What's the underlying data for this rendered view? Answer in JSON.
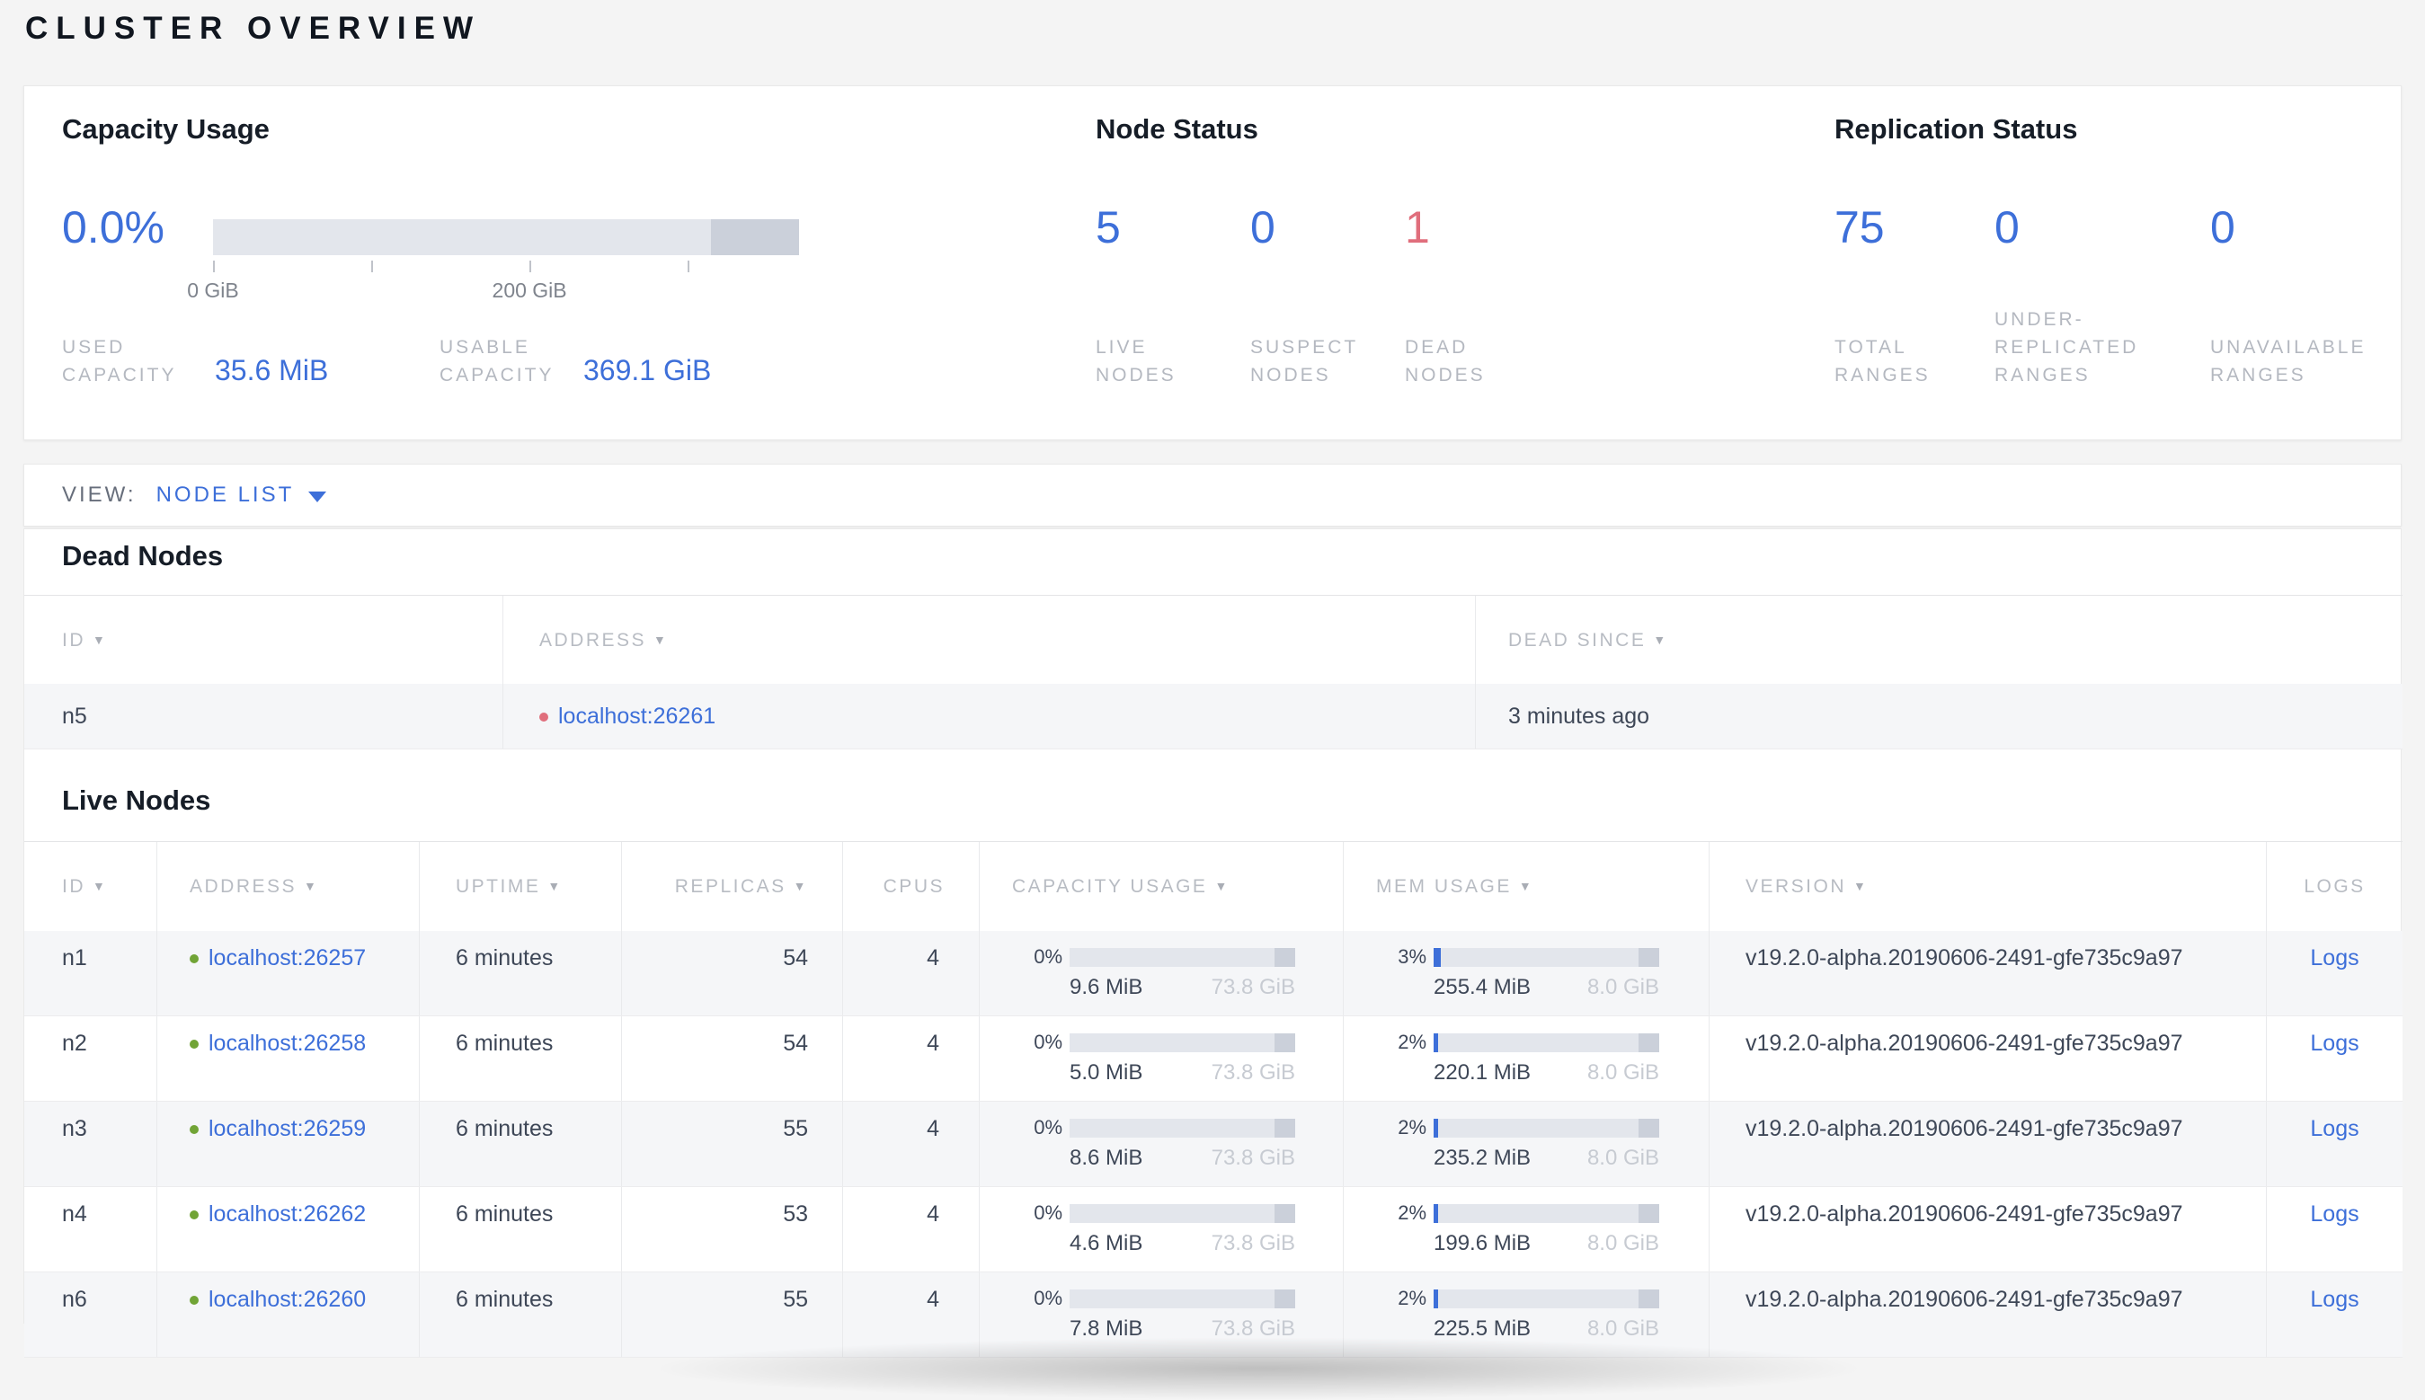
{
  "theme": {
    "accent_blue": "#3d6fd9",
    "danger_red": "#e06e7c",
    "live_green": "#71a436",
    "label_gray": "#b4b8c0",
    "bar_track": "#e3e6ec",
    "bar_reserved": "#cbd0da",
    "muted_value": "#c7cbd2",
    "page_bg": "#f4f4f4"
  },
  "title": "CLUSTER OVERVIEW",
  "summary": {
    "capacity": {
      "title": "Capacity Usage",
      "percent": "0.0%",
      "used_label": "USED\nCAPACITY",
      "used_value": "35.6 MiB",
      "usable_label": "USABLE\nCAPACITY",
      "usable_value": "369.1 GiB",
      "gauge": {
        "used_pct": 0,
        "reserved_start_pct": 85,
        "ticks": [
          {
            "pos_pct": 0,
            "label": "0 GiB"
          },
          {
            "pos_pct": 27,
            "label": ""
          },
          {
            "pos_pct": 54,
            "label": "200 GiB"
          },
          {
            "pos_pct": 81,
            "label": ""
          }
        ]
      }
    },
    "node_status": {
      "title": "Node Status",
      "stats": [
        {
          "value": "5",
          "label": "LIVE\nNODES",
          "tone": "blue"
        },
        {
          "value": "0",
          "label": "SUSPECT\nNODES",
          "tone": "blue"
        },
        {
          "value": "1",
          "label": "DEAD\nNODES",
          "tone": "red"
        }
      ]
    },
    "replication": {
      "title": "Replication Status",
      "stats": [
        {
          "value": "75",
          "label": "TOTAL\nRANGES",
          "tone": "blue"
        },
        {
          "value": "0",
          "label": "UNDER-\nREPLICATED\nRANGES",
          "tone": "blue"
        },
        {
          "value": "0",
          "label": "UNAVAILABLE\nRANGES",
          "tone": "blue"
        }
      ]
    }
  },
  "view_bar": {
    "label": "VIEW:",
    "selected": "NODE LIST"
  },
  "dead_nodes": {
    "title": "Dead Nodes",
    "columns": [
      {
        "label": "ID",
        "sortable": true
      },
      {
        "label": "ADDRESS",
        "sortable": true
      },
      {
        "label": "DEAD SINCE",
        "sortable": true
      }
    ],
    "rows": [
      {
        "id": "n5",
        "address": "localhost:26261",
        "dead_since": "3 minutes ago"
      }
    ]
  },
  "live_nodes": {
    "title": "Live Nodes",
    "columns": [
      {
        "label": "ID",
        "sortable": true
      },
      {
        "label": "ADDRESS",
        "sortable": true
      },
      {
        "label": "UPTIME",
        "sortable": true
      },
      {
        "label": "REPLICAS",
        "sortable": true
      },
      {
        "label": "CPUS",
        "sortable": false
      },
      {
        "label": "CAPACITY USAGE",
        "sortable": true
      },
      {
        "label": "MEM USAGE",
        "sortable": true
      },
      {
        "label": "VERSION",
        "sortable": true
      },
      {
        "label": "LOGS",
        "sortable": false
      }
    ],
    "logs_label": "Logs",
    "reserved_end_pct": 9,
    "rows": [
      {
        "id": "n1",
        "address": "localhost:26257",
        "uptime": "6 minutes",
        "replicas": "54",
        "cpus": "4",
        "capacity": {
          "percent": "0%",
          "pct": 0,
          "used": "9.6 MiB",
          "total": "73.8 GiB"
        },
        "memory": {
          "percent": "3%",
          "pct": 3,
          "used": "255.4 MiB",
          "total": "8.0 GiB"
        },
        "version": "v19.2.0-alpha.20190606-2491-gfe735c9a97"
      },
      {
        "id": "n2",
        "address": "localhost:26258",
        "uptime": "6 minutes",
        "replicas": "54",
        "cpus": "4",
        "capacity": {
          "percent": "0%",
          "pct": 0,
          "used": "5.0 MiB",
          "total": "73.8 GiB"
        },
        "memory": {
          "percent": "2%",
          "pct": 2,
          "used": "220.1 MiB",
          "total": "8.0 GiB"
        },
        "version": "v19.2.0-alpha.20190606-2491-gfe735c9a97"
      },
      {
        "id": "n3",
        "address": "localhost:26259",
        "uptime": "6 minutes",
        "replicas": "55",
        "cpus": "4",
        "capacity": {
          "percent": "0%",
          "pct": 0,
          "used": "8.6 MiB",
          "total": "73.8 GiB"
        },
        "memory": {
          "percent": "2%",
          "pct": 2,
          "used": "235.2 MiB",
          "total": "8.0 GiB"
        },
        "version": "v19.2.0-alpha.20190606-2491-gfe735c9a97"
      },
      {
        "id": "n4",
        "address": "localhost:26262",
        "uptime": "6 minutes",
        "replicas": "53",
        "cpus": "4",
        "capacity": {
          "percent": "0%",
          "pct": 0,
          "used": "4.6 MiB",
          "total": "73.8 GiB"
        },
        "memory": {
          "percent": "2%",
          "pct": 2,
          "used": "199.6 MiB",
          "total": "8.0 GiB"
        },
        "version": "v19.2.0-alpha.20190606-2491-gfe735c9a97"
      },
      {
        "id": "n6",
        "address": "localhost:26260",
        "uptime": "6 minutes",
        "replicas": "55",
        "cpus": "4",
        "capacity": {
          "percent": "0%",
          "pct": 0,
          "used": "7.8 MiB",
          "total": "73.8 GiB"
        },
        "memory": {
          "percent": "2%",
          "pct": 2,
          "used": "225.5 MiB",
          "total": "8.0 GiB"
        },
        "version": "v19.2.0-alpha.20190606-2491-gfe735c9a97"
      }
    ]
  }
}
